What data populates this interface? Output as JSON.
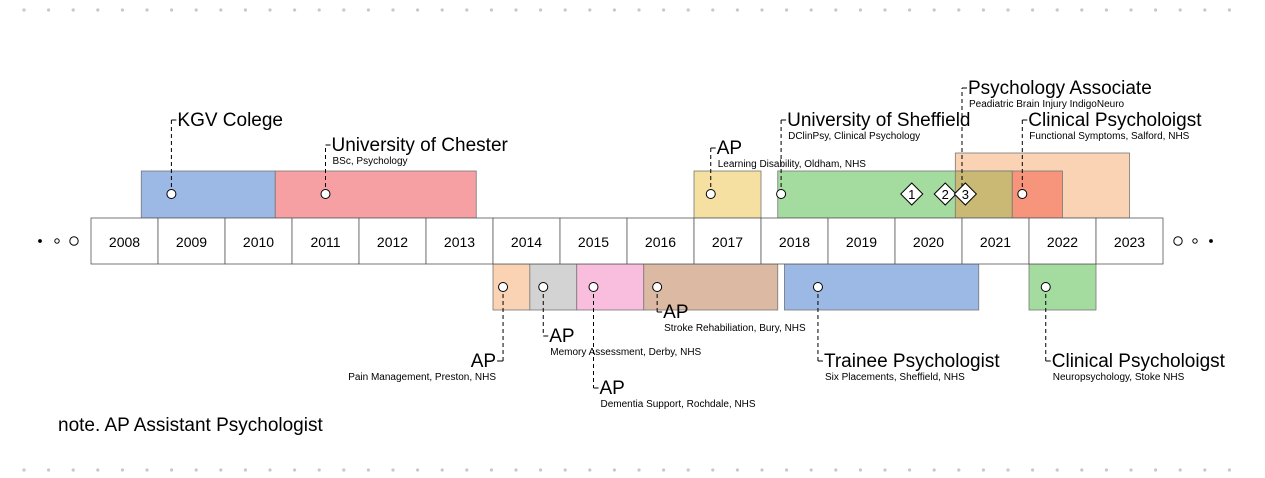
{
  "chart_data": {
    "type": "timeline",
    "years": [
      2008,
      2009,
      2010,
      2011,
      2012,
      2013,
      2014,
      2015,
      2016,
      2017,
      2018,
      2019,
      2020,
      2021,
      2022,
      2023
    ],
    "year_labels": [
      "2008",
      "2009",
      "2010",
      "2011",
      "2012",
      "2013",
      "2014",
      "2015",
      "2016",
      "2017",
      "2018",
      "2019",
      "2020",
      "2021",
      "2022",
      "2023"
    ],
    "note": "note. AP Assistant Psychologist",
    "education": [
      {
        "title": "KGV Colege",
        "subtitle": "",
        "start": 2008.75,
        "end": 2010.75,
        "color": "#9cb9e6",
        "marker": 2009.2
      },
      {
        "title": "University of Chester",
        "subtitle": "BSc, Psychology",
        "start": 2010.75,
        "end": 2013.75,
        "color": "#f7a0a3",
        "marker": 2011.5
      },
      {
        "title": "AP",
        "subtitle": "Learning Disability, Oldham, NHS",
        "start": 2017.0,
        "end": 2018.0,
        "color": "#f5e0a2",
        "marker": 2017.25
      },
      {
        "title": "University of Sheffield",
        "subtitle": "DClinPsy, Clinical Psychology",
        "start": 2018.25,
        "end": 2021.75,
        "color": "#a3dc9e",
        "marker": 2018.3
      },
      {
        "title": "Psychology Associate",
        "subtitle": "Peadiatric Brain Injury IndigoNeuro",
        "start": 2020.9,
        "end": 2021.75,
        "color": "#c9b975",
        "marker": 2021.0
      },
      {
        "title": "Clinical Psycholoigst",
        "subtitle": "Functional Symptoms, Salford, NHS",
        "start": 2021.75,
        "end": 2022.5,
        "color": "#f7947c",
        "marker": 2021.9
      }
    ],
    "back_block": {
      "start": 2020.9,
      "end": 2023.5,
      "color": "#fad2b4"
    },
    "diamonds": [
      {
        "label": "1",
        "year": 2020.25
      },
      {
        "label": "2",
        "year": 2020.75
      },
      {
        "label": "3",
        "year": 2021.05
      }
    ],
    "work": [
      {
        "title": "AP",
        "subtitle": "Pain Management, Preston, NHS",
        "start": 2014.0,
        "end": 2014.55,
        "color": "#fad2b4",
        "marker": 2014.15
      },
      {
        "title": "AP",
        "subtitle": "Memory Assessment, Derby, NHS",
        "start": 2014.55,
        "end": 2015.25,
        "color": "#d3d3d3",
        "marker": 2014.75
      },
      {
        "title": "AP",
        "subtitle": "Dementia Support, Rochdale, NHS",
        "start": 2015.25,
        "end": 2016.25,
        "color": "#f9bddd",
        "marker": 2015.5
      },
      {
        "title": "AP",
        "subtitle": "Stroke Rehabiliation, Bury, NHS",
        "start": 2016.25,
        "end": 2018.25,
        "color": "#dcb9a2",
        "marker": 2016.45
      },
      {
        "title": "Trainee Psychologist",
        "subtitle": "Six Placements, Sheffield, NHS",
        "start": 2018.35,
        "end": 2021.25,
        "color": "#9cb9e6",
        "marker": 2018.85
      },
      {
        "title": "Clinical Psycholoigst",
        "subtitle": "Neuropsychology, Stoke NHS",
        "start": 2022.0,
        "end": 2023.0,
        "color": "#a3dc9e",
        "marker": 2022.25
      }
    ]
  }
}
